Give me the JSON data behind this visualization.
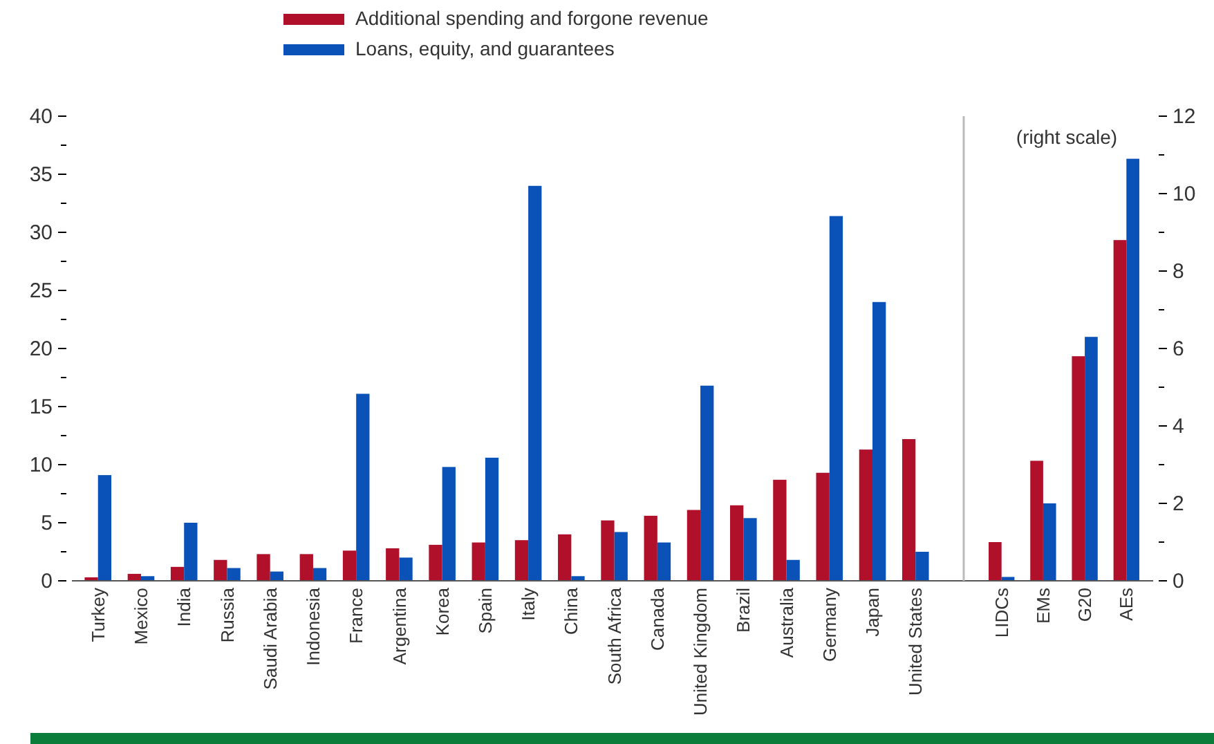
{
  "chart_data": [
    {
      "type": "bar",
      "categories": [
        "Turkey",
        "Mexico",
        "India",
        "Russia",
        "Saudi Arabia",
        "Indonesia",
        "France",
        "Argentina",
        "Korea",
        "Spain",
        "Italy",
        "China",
        "South Africa",
        "Canada",
        "United Kingdom",
        "Brazil",
        "Australia",
        "Germany",
        "Japan",
        "United States"
      ],
      "series": [
        {
          "name": "Additional spending and forgone revenue",
          "color": "#b0102a",
          "values": [
            0.3,
            0.6,
            1.2,
            1.8,
            2.3,
            2.3,
            2.6,
            2.8,
            3.1,
            3.3,
            3.5,
            4.0,
            5.2,
            5.6,
            6.1,
            6.5,
            8.7,
            9.3,
            11.3,
            12.2
          ]
        },
        {
          "name": "Loans, equity, and guarantees",
          "color": "#0a52b8",
          "values": [
            9.1,
            0.4,
            5.0,
            1.1,
            0.8,
            1.1,
            16.1,
            2.0,
            9.8,
            10.6,
            34.0,
            0.4,
            4.2,
            3.3,
            16.8,
            5.4,
            1.8,
            31.4,
            24.0,
            2.5
          ]
        }
      ],
      "ylim": [
        0,
        40
      ],
      "yticks": [
        0,
        {
          "value": 2.5,
          "label": null
        },
        5,
        {
          "value": 7.5,
          "label": null
        },
        10,
        {
          "value": 12.5,
          "label": null
        },
        15,
        {
          "value": 17.5,
          "label": null
        },
        20,
        {
          "value": 22.5,
          "label": null
        },
        25,
        {
          "value": 27.5,
          "label": null
        },
        30,
        {
          "value": 32.5,
          "label": null
        },
        35,
        {
          "value": 37.5,
          "label": null
        },
        40
      ],
      "legend": "top",
      "grid": false
    },
    {
      "type": "bar",
      "categories": [
        "LIDCs",
        "EMs",
        "G20",
        "AEs"
      ],
      "series": [
        {
          "color": "#b0102a",
          "axis": "y2",
          "values": [
            1.0,
            3.1,
            5.8,
            8.8
          ]
        },
        {
          "color": "#0a52b8",
          "axis": "y2",
          "values": [
            0.1,
            2.0,
            6.3,
            10.9
          ]
        }
      ],
      "y2lim": [
        0,
        12
      ],
      "y2ticks": [
        0,
        {
          "value": 1,
          "label": null
        },
        2,
        {
          "value": 3,
          "label": null
        },
        4,
        {
          "value": 5,
          "label": null
        },
        6,
        {
          "value": 7,
          "label": null
        },
        8,
        {
          "value": 9,
          "label": null
        },
        10,
        {
          "value": 11,
          "label": null
        },
        12
      ],
      "annotations": [
        "(right scale)"
      ],
      "grid": false
    }
  ]
}
